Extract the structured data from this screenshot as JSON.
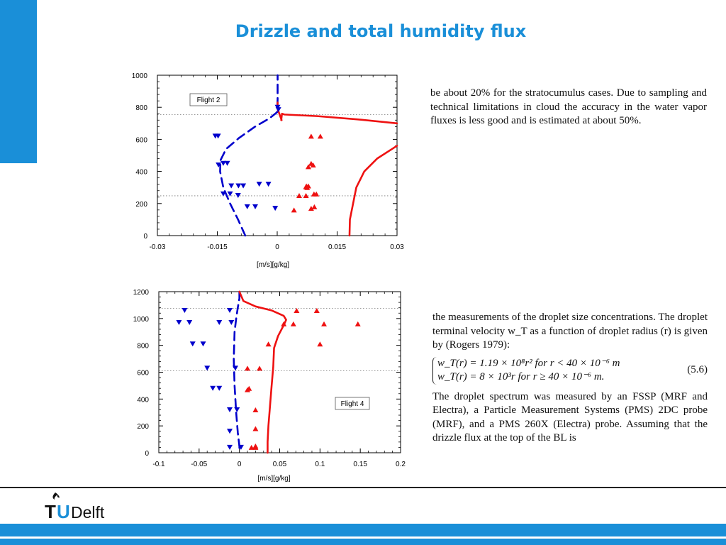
{
  "title": "Drizzle and total humidity flux",
  "colors": {
    "accent": "#1a8fd8",
    "drizzle": "#0000cc",
    "humidity": "#ee1111"
  },
  "logo": {
    "text": "TUDelft"
  },
  "chart_data": [
    {
      "type": "scatter",
      "flight_label": "Flight 2",
      "xlabel": "[m/s][g/kg]",
      "ylabel": "",
      "xlim": [
        -0.03,
        0.03
      ],
      "ylim": [
        0,
        1000
      ],
      "xticks": [
        -0.03,
        -0.015,
        0,
        0.015,
        0.03
      ],
      "xtick_labels": [
        "-0.03",
        "-0.015",
        "0",
        "0.015",
        "0.03"
      ],
      "yticks": [
        0,
        200,
        400,
        600,
        800,
        1000
      ],
      "ytick_labels": [
        "0",
        "200",
        "400",
        "600",
        "800",
        "1000"
      ],
      "grid": false,
      "reference_lines_y": [
        755,
        248
      ],
      "series": [
        {
          "kind": "line",
          "dash": true,
          "color": "#0000cc",
          "x": [
            -0.008,
            -0.0098,
            -0.0118,
            -0.0135,
            -0.0143,
            -0.0142,
            -0.0128,
            -0.0095,
            -0.0055,
            -0.002,
            0,
            0.0001,
            0.0001
          ],
          "y": [
            0,
            100,
            200,
            300,
            400,
            470,
            540,
            610,
            680,
            730,
            770,
            850,
            1000
          ]
        },
        {
          "kind": "line",
          "dash": false,
          "color": "#ee1111",
          "x": [
            0.03,
            0.025,
            0.0218,
            0.0198,
            0.019,
            0.0182,
            0.0181
          ],
          "y": [
            560,
            480,
            400,
            300,
            200,
            100,
            0
          ]
        },
        {
          "kind": "line",
          "dash": false,
          "color": "#ee1111",
          "x": [
            0.001,
            0.0012,
            0.0018,
            0.01,
            0.02,
            0.03
          ],
          "y": [
            720,
            760,
            755,
            745,
            725,
            700
          ]
        },
        {
          "kind": "line",
          "dash": false,
          "color": "#ee1111",
          "x": [
            0.0001,
            0.0001,
            0.0011
          ],
          "y": [
            830,
            790,
            720
          ]
        },
        {
          "kind": "markers",
          "marker": "triangle-down",
          "color": "#0000cc",
          "x": [
            -0.0155,
            -0.0148,
            -0.0125,
            -0.0135,
            -0.0147,
            -0.0115,
            -0.0097,
            -0.0085,
            -0.0045,
            -0.0022,
            -0.0135,
            -0.0118,
            -0.0098,
            -0.0075,
            -0.0055,
            -0.0005,
            0.0001,
            0.0003
          ],
          "y": [
            620,
            620,
            450,
            450,
            440,
            310,
            310,
            310,
            320,
            320,
            260,
            260,
            250,
            180,
            180,
            170,
            800,
            785
          ]
        },
        {
          "kind": "markers",
          "marker": "triangle-up",
          "color": "#ee1111",
          "x": [
            0.0085,
            0.0108,
            0.0085,
            0.009,
            0.0078,
            0.0073,
            0.0075,
            0.0078,
            0.0092,
            0.0098,
            0.0072,
            0.0055,
            0.0042,
            0.0085,
            0.0093,
            0.0072
          ],
          "y": [
            620,
            620,
            450,
            440,
            430,
            310,
            300,
            310,
            260,
            260,
            250,
            250,
            160,
            170,
            180,
            305
          ]
        }
      ]
    },
    {
      "type": "scatter",
      "flight_label": "Flight 4",
      "xlabel": "[m/s][g/kg]",
      "ylabel": "",
      "xlim": [
        -0.1,
        0.2
      ],
      "ylim": [
        0,
        1200
      ],
      "xticks": [
        -0.1,
        -0.05,
        0,
        0.05,
        0.1,
        0.15,
        0.2
      ],
      "xtick_labels": [
        "-0.1",
        "-0.05",
        "0",
        "0.05",
        "0.1",
        "0.15",
        "0.2"
      ],
      "yticks": [
        0,
        200,
        400,
        600,
        800,
        1000,
        1200
      ],
      "ytick_labels": [
        "0",
        "200",
        "400",
        "600",
        "800",
        "1000",
        "1200"
      ],
      "grid": false,
      "reference_lines_y": [
        1075,
        610
      ],
      "series": [
        {
          "kind": "line",
          "dash": true,
          "color": "#0000cc",
          "x": [
            0,
            0,
            -0.002,
            -0.004,
            -0.006,
            -0.007,
            -0.006,
            -0.004,
            -0.002,
            0,
            0
          ],
          "y": [
            1200,
            1150,
            1080,
            1000,
            900,
            700,
            500,
            300,
            150,
            50,
            0
          ]
        },
        {
          "kind": "line",
          "dash": false,
          "color": "#ee1111",
          "x": [
            0,
            0.005,
            0.02,
            0.04,
            0.055,
            0.058,
            0.055,
            0.048,
            0.043,
            0.042,
            0.04,
            0.038,
            0.036,
            0.035,
            0.035
          ],
          "y": [
            1200,
            1130,
            1090,
            1060,
            1020,
            990,
            950,
            870,
            780,
            640,
            500,
            350,
            200,
            80,
            0
          ]
        },
        {
          "kind": "markers",
          "marker": "triangle-down",
          "color": "#0000cc",
          "x": [
            -0.068,
            -0.012,
            -0.075,
            -0.062,
            -0.025,
            -0.01,
            -0.058,
            -0.045,
            -0.04,
            -0.005,
            -0.033,
            -0.025,
            -0.012,
            -0.003,
            -0.012,
            -0.012,
            0.002
          ],
          "y": [
            1060,
            1060,
            970,
            970,
            970,
            970,
            810,
            810,
            630,
            630,
            480,
            480,
            320,
            320,
            160,
            40,
            40
          ]
        },
        {
          "kind": "markers",
          "marker": "triangle-up",
          "color": "#ee1111",
          "x": [
            0.071,
            0.096,
            0.055,
            0.067,
            0.105,
            0.147,
            0.036,
            0.01,
            0.025,
            0.1,
            0.01,
            0.012,
            0.02,
            0.02,
            0.02,
            0.015,
            0.02
          ],
          "y": [
            1060,
            1060,
            960,
            960,
            960,
            960,
            810,
            630,
            630,
            810,
            470,
            480,
            320,
            180,
            50,
            40,
            40
          ]
        }
      ]
    }
  ],
  "excerpt1": {
    "text": "be about 20% for the stratocumulus cases. Due to sampling and technical limitations in cloud the accuracy in the water vapor fluxes is less good and is estimated at about 50%."
  },
  "excerpt2": {
    "intro": "the measurements of the droplet size concentrations. The droplet terminal velocity w_T as a function of droplet radius (r) is given by (Rogers 1979):",
    "eq1": "w_T(r) = 1.19 × 10⁸r²      for r < 40 × 10⁻⁶ m",
    "eq2": "w_T(r) = 8 × 10³r             for r ≥ 40 × 10⁻⁶ m.",
    "eq_number": "(5.6)",
    "body": "The droplet spectrum was measured by an FSSP (MRF and Electra), a Particle Measurement Systems (PMS) 2DC probe (MRF), and a PMS 260X (Electra) probe. Assuming that the drizzle flux at the top of the BL is"
  }
}
